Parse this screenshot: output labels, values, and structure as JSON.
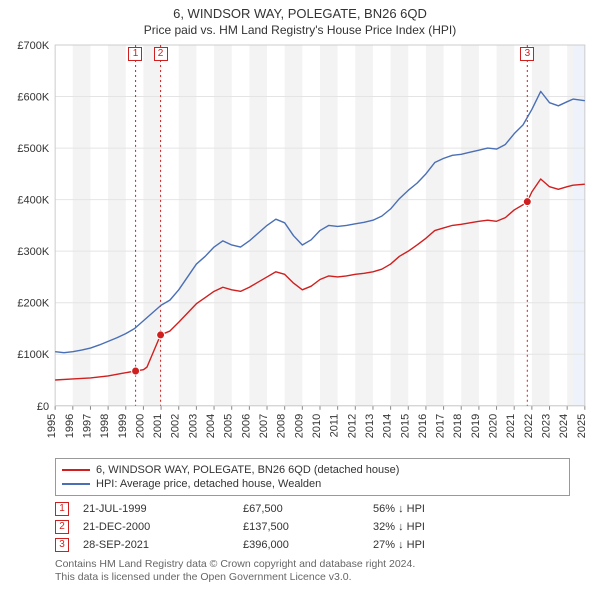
{
  "titles": {
    "line1": "6, WINDSOR WAY, POLEGATE, BN26 6QD",
    "line2": "Price paid vs. HM Land Registry's House Price Index (HPI)"
  },
  "chart": {
    "type": "line",
    "background_color": "#ffffff",
    "plot_bg_color": "#ffffff",
    "outer_border_color": "#cccccc",
    "x": {
      "min": 1995,
      "max": 2025,
      "ticks_every": 1
    },
    "y": {
      "min": 0,
      "max": 700000,
      "ticks_every": 100000,
      "label_prefix": "£",
      "tick_format": "K"
    },
    "grid_color": "#e4e4e4",
    "xband_color": "#f3f3f3",
    "forecast_band": {
      "from": 2024.333,
      "to": 2025,
      "color": "#eef2fb"
    },
    "label_fontsize": 11,
    "title_fontsize": 13,
    "subtitle_fontsize": 12,
    "line_width": 1.4,
    "marker_radius": 4,
    "xaxis_vertical_labels": true
  },
  "series": {
    "property": {
      "label": "6, WINDSOR WAY, POLEGATE, BN26 6QD (detached house)",
      "color": "#d01f1f",
      "data": [
        [
          1995,
          50000
        ],
        [
          1996,
          52000
        ],
        [
          1997,
          54000
        ],
        [
          1998,
          58000
        ],
        [
          1998.8,
          63000
        ],
        [
          1999.556,
          67500
        ],
        [
          2000,
          70000
        ],
        [
          2000.2,
          75000
        ],
        [
          2000.972,
          137500
        ],
        [
          2001.5,
          145000
        ],
        [
          2002,
          162000
        ],
        [
          2002.5,
          180000
        ],
        [
          2003,
          198000
        ],
        [
          2003.5,
          210000
        ],
        [
          2004,
          222000
        ],
        [
          2004.5,
          230000
        ],
        [
          2005,
          225000
        ],
        [
          2005.5,
          222000
        ],
        [
          2006,
          230000
        ],
        [
          2006.5,
          240000
        ],
        [
          2007,
          250000
        ],
        [
          2007.5,
          260000
        ],
        [
          2008,
          255000
        ],
        [
          2008.5,
          238000
        ],
        [
          2009,
          225000
        ],
        [
          2009.5,
          232000
        ],
        [
          2010,
          245000
        ],
        [
          2010.5,
          252000
        ],
        [
          2011,
          250000
        ],
        [
          2011.5,
          252000
        ],
        [
          2012,
          255000
        ],
        [
          2012.5,
          257000
        ],
        [
          2013,
          260000
        ],
        [
          2013.5,
          265000
        ],
        [
          2014,
          275000
        ],
        [
          2014.5,
          290000
        ],
        [
          2015,
          300000
        ],
        [
          2015.5,
          312000
        ],
        [
          2016,
          325000
        ],
        [
          2016.5,
          340000
        ],
        [
          2017,
          345000
        ],
        [
          2017.5,
          350000
        ],
        [
          2018,
          352000
        ],
        [
          2018.5,
          355000
        ],
        [
          2019,
          358000
        ],
        [
          2019.5,
          360000
        ],
        [
          2020,
          358000
        ],
        [
          2020.5,
          365000
        ],
        [
          2021,
          380000
        ],
        [
          2021.5,
          390000
        ],
        [
          2021.742,
          396000
        ],
        [
          2022,
          415000
        ],
        [
          2022.5,
          440000
        ],
        [
          2023,
          425000
        ],
        [
          2023.5,
          420000
        ],
        [
          2024,
          425000
        ],
        [
          2024.333,
          428000
        ],
        [
          2025,
          430000
        ]
      ]
    },
    "hpi": {
      "label": "HPI: Average price, detached house, Wealden",
      "color": "#4a6fb5",
      "data": [
        [
          1995,
          105000
        ],
        [
          1995.5,
          103000
        ],
        [
          1996,
          105000
        ],
        [
          1996.5,
          108000
        ],
        [
          1997,
          112000
        ],
        [
          1997.5,
          118000
        ],
        [
          1998,
          125000
        ],
        [
          1998.5,
          132000
        ],
        [
          1999,
          140000
        ],
        [
          1999.5,
          150000
        ],
        [
          2000,
          165000
        ],
        [
          2000.5,
          180000
        ],
        [
          2001,
          195000
        ],
        [
          2001.5,
          205000
        ],
        [
          2002,
          225000
        ],
        [
          2002.5,
          250000
        ],
        [
          2003,
          275000
        ],
        [
          2003.5,
          290000
        ],
        [
          2004,
          308000
        ],
        [
          2004.5,
          320000
        ],
        [
          2005,
          312000
        ],
        [
          2005.5,
          308000
        ],
        [
          2006,
          320000
        ],
        [
          2006.5,
          335000
        ],
        [
          2007,
          350000
        ],
        [
          2007.5,
          362000
        ],
        [
          2008,
          355000
        ],
        [
          2008.5,
          330000
        ],
        [
          2009,
          312000
        ],
        [
          2009.5,
          322000
        ],
        [
          2010,
          340000
        ],
        [
          2010.5,
          350000
        ],
        [
          2011,
          348000
        ],
        [
          2011.5,
          350000
        ],
        [
          2012,
          353000
        ],
        [
          2012.5,
          356000
        ],
        [
          2013,
          360000
        ],
        [
          2013.5,
          368000
        ],
        [
          2014,
          382000
        ],
        [
          2014.5,
          402000
        ],
        [
          2015,
          418000
        ],
        [
          2015.5,
          432000
        ],
        [
          2016,
          450000
        ],
        [
          2016.5,
          472000
        ],
        [
          2017,
          480000
        ],
        [
          2017.5,
          486000
        ],
        [
          2018,
          488000
        ],
        [
          2018.5,
          492000
        ],
        [
          2019,
          496000
        ],
        [
          2019.5,
          500000
        ],
        [
          2020,
          498000
        ],
        [
          2020.5,
          507000
        ],
        [
          2021,
          528000
        ],
        [
          2021.5,
          545000
        ],
        [
          2022,
          575000
        ],
        [
          2022.5,
          610000
        ],
        [
          2023,
          588000
        ],
        [
          2023.5,
          582000
        ],
        [
          2024,
          590000
        ],
        [
          2024.333,
          595000
        ],
        [
          2025,
          592000
        ]
      ]
    }
  },
  "sales": [
    {
      "num": "1",
      "year": 1999.556,
      "price": 67500,
      "date": "21-JUL-1999",
      "price_label": "£67,500",
      "delta": "56% ↓ HPI"
    },
    {
      "num": "2",
      "year": 2000.972,
      "price": 137500,
      "date": "21-DEC-2000",
      "price_label": "£137,500",
      "delta": "32% ↓ HPI"
    },
    {
      "num": "3",
      "year": 2021.742,
      "price": 396000,
      "date": "28-SEP-2021",
      "price_label": "£396,000",
      "delta": "27% ↓ HPI"
    }
  ],
  "sale_marker": {
    "line_color": "#d01f1f",
    "line_dash": "2,3",
    "box_border": "#d01f1f",
    "box_text": "#d01f1f"
  },
  "legend": {
    "border_color": "#999999"
  },
  "footer": {
    "line1": "Contains HM Land Registry data © Crown copyright and database right 2024.",
    "line2": "This data is licensed under the Open Government Licence v3.0."
  }
}
